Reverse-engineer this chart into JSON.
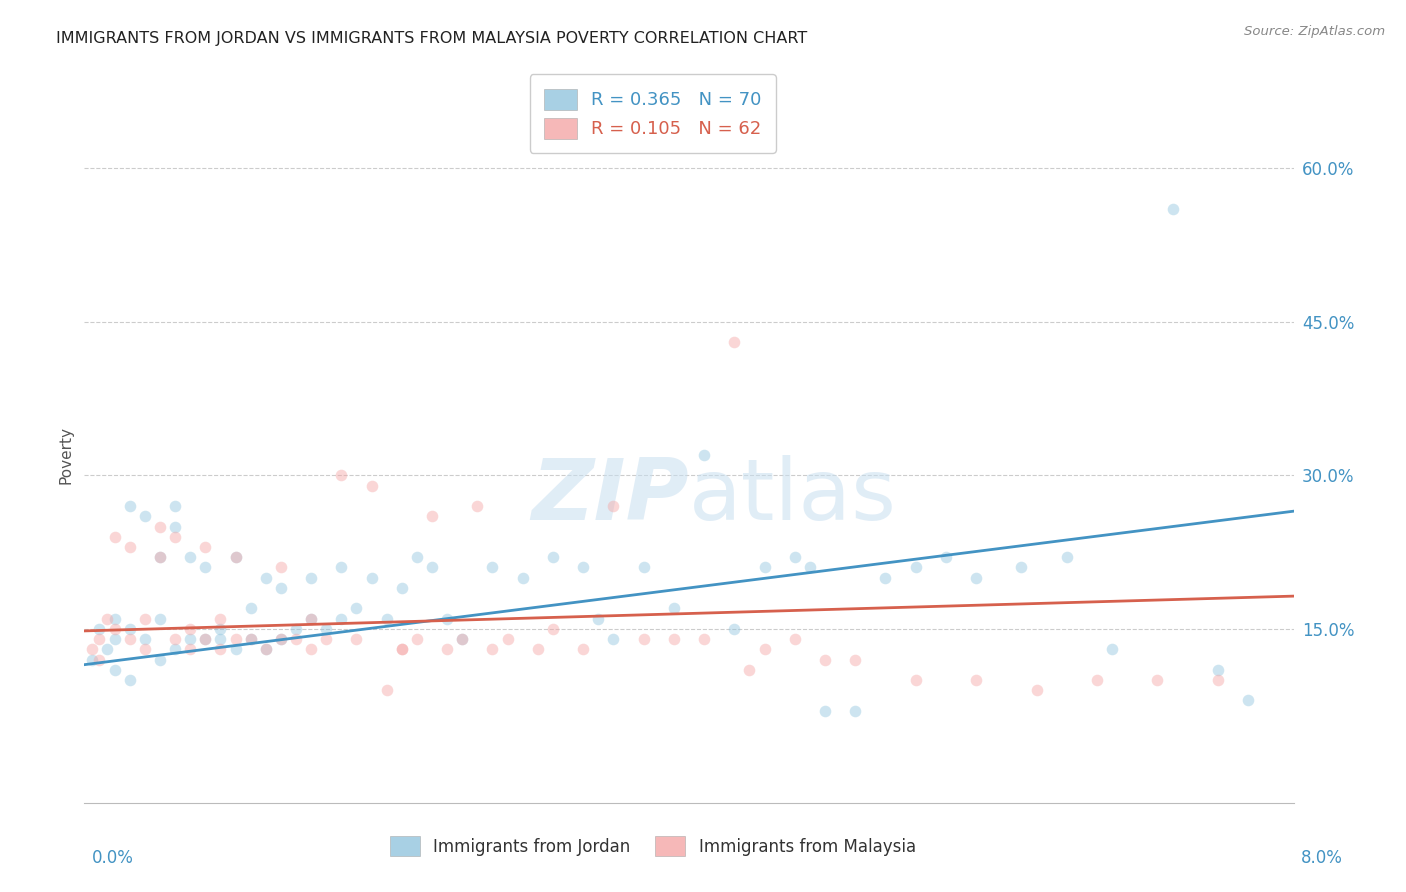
{
  "title": "IMMIGRANTS FROM JORDAN VS IMMIGRANTS FROM MALAYSIA POVERTY CORRELATION CHART",
  "source": "Source: ZipAtlas.com",
  "ylabel": "Poverty",
  "xlim": [
    0.0,
    0.08
  ],
  "ylim": [
    -0.02,
    0.66
  ],
  "yticks": [
    0.0,
    0.15,
    0.3,
    0.45,
    0.6
  ],
  "ytick_labels": [
    "",
    "15.0%",
    "30.0%",
    "45.0%",
    "60.0%"
  ],
  "xtick_left_label": "0.0%",
  "xtick_right_label": "8.0%",
  "jordan_color": "#92c5de",
  "malaysia_color": "#f4a6a6",
  "jordan_line_color": "#4393c3",
  "malaysia_line_color": "#d6604d",
  "jordan_R": 0.365,
  "jordan_N": 70,
  "malaysia_R": 0.105,
  "malaysia_N": 62,
  "legend_label_jordan": "Immigrants from Jordan",
  "legend_label_malaysia": "Immigrants from Malaysia",
  "jordan_trend_x0": 0.0,
  "jordan_trend_x1": 0.08,
  "jordan_trend_y0": 0.115,
  "jordan_trend_y1": 0.265,
  "malaysia_trend_x0": 0.0,
  "malaysia_trend_x1": 0.08,
  "malaysia_trend_y0": 0.148,
  "malaysia_trend_y1": 0.182,
  "jordan_scatter_x": [
    0.0005,
    0.001,
    0.0015,
    0.002,
    0.002,
    0.002,
    0.003,
    0.003,
    0.003,
    0.004,
    0.004,
    0.005,
    0.005,
    0.005,
    0.006,
    0.006,
    0.006,
    0.007,
    0.007,
    0.008,
    0.008,
    0.009,
    0.009,
    0.01,
    0.01,
    0.011,
    0.011,
    0.012,
    0.012,
    0.013,
    0.013,
    0.014,
    0.015,
    0.015,
    0.016,
    0.017,
    0.017,
    0.018,
    0.019,
    0.02,
    0.021,
    0.022,
    0.023,
    0.024,
    0.025,
    0.027,
    0.029,
    0.031,
    0.033,
    0.035,
    0.037,
    0.039,
    0.041,
    0.043,
    0.045,
    0.047,
    0.049,
    0.051,
    0.053,
    0.055,
    0.057,
    0.059,
    0.062,
    0.065,
    0.068,
    0.072,
    0.075,
    0.077,
    0.034,
    0.048
  ],
  "jordan_scatter_y": [
    0.12,
    0.15,
    0.13,
    0.11,
    0.14,
    0.16,
    0.1,
    0.15,
    0.27,
    0.14,
    0.26,
    0.12,
    0.16,
    0.22,
    0.13,
    0.25,
    0.27,
    0.14,
    0.22,
    0.14,
    0.21,
    0.14,
    0.15,
    0.13,
    0.22,
    0.14,
    0.17,
    0.13,
    0.2,
    0.14,
    0.19,
    0.15,
    0.16,
    0.2,
    0.15,
    0.16,
    0.21,
    0.17,
    0.2,
    0.16,
    0.19,
    0.22,
    0.21,
    0.16,
    0.14,
    0.21,
    0.2,
    0.22,
    0.21,
    0.14,
    0.21,
    0.17,
    0.32,
    0.15,
    0.21,
    0.22,
    0.07,
    0.07,
    0.2,
    0.21,
    0.22,
    0.2,
    0.21,
    0.22,
    0.13,
    0.56,
    0.11,
    0.08,
    0.16,
    0.21
  ],
  "malaysia_scatter_x": [
    0.0005,
    0.001,
    0.001,
    0.0015,
    0.002,
    0.002,
    0.003,
    0.003,
    0.004,
    0.004,
    0.005,
    0.005,
    0.006,
    0.006,
    0.007,
    0.007,
    0.008,
    0.008,
    0.009,
    0.009,
    0.01,
    0.01,
    0.011,
    0.012,
    0.013,
    0.013,
    0.014,
    0.015,
    0.015,
    0.016,
    0.017,
    0.018,
    0.019,
    0.02,
    0.021,
    0.022,
    0.023,
    0.024,
    0.025,
    0.026,
    0.027,
    0.028,
    0.03,
    0.031,
    0.033,
    0.035,
    0.037,
    0.039,
    0.041,
    0.043,
    0.045,
    0.047,
    0.049,
    0.051,
    0.055,
    0.059,
    0.063,
    0.067,
    0.071,
    0.075,
    0.021,
    0.044
  ],
  "malaysia_scatter_y": [
    0.13,
    0.12,
    0.14,
    0.16,
    0.15,
    0.24,
    0.14,
    0.23,
    0.13,
    0.16,
    0.22,
    0.25,
    0.14,
    0.24,
    0.13,
    0.15,
    0.14,
    0.23,
    0.13,
    0.16,
    0.14,
    0.22,
    0.14,
    0.13,
    0.14,
    0.21,
    0.14,
    0.13,
    0.16,
    0.14,
    0.3,
    0.14,
    0.29,
    0.09,
    0.13,
    0.14,
    0.26,
    0.13,
    0.14,
    0.27,
    0.13,
    0.14,
    0.13,
    0.15,
    0.13,
    0.27,
    0.14,
    0.14,
    0.14,
    0.43,
    0.13,
    0.14,
    0.12,
    0.12,
    0.1,
    0.1,
    0.09,
    0.1,
    0.1,
    0.1,
    0.13,
    0.11
  ],
  "background_color": "#ffffff",
  "grid_color": "#cccccc",
  "tick_color": "#4393c3",
  "title_color": "#222222",
  "marker_size": 70,
  "marker_alpha": 0.45,
  "line_width": 2.0
}
